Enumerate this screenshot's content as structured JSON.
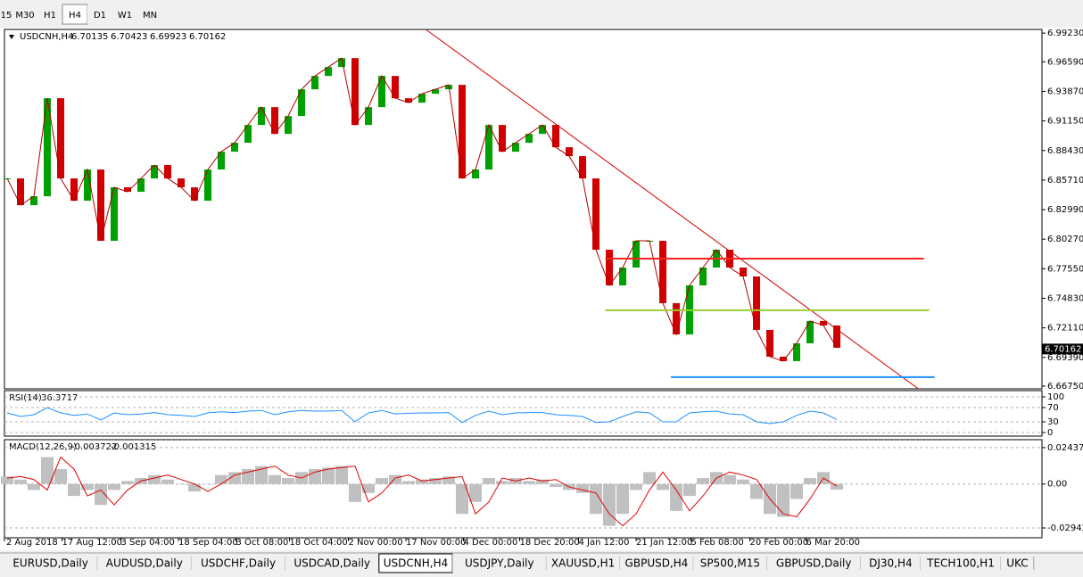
{
  "toolbar": {
    "timeframes": [
      "15",
      "M30",
      "H1",
      "H4",
      "D1",
      "W1",
      "MN"
    ],
    "active": "H4"
  },
  "tabs": {
    "items": [
      "EURUSD,Daily",
      "AUDUSD,Daily",
      "USDCHF,Daily",
      "USDCAD,Daily",
      "USDCNH,H4",
      "USDJPY,Daily",
      "XAUUSD,H1",
      "GBPUSD,H4",
      "SP500,M15",
      "GBPUSD,Daily",
      "DJ30,H4",
      "TECH100,H1",
      "UKC"
    ],
    "active": "USDCNH,H4"
  },
  "chart_data": [
    {
      "type": "candlestick",
      "title": "USDCNH,H4",
      "header_values": [
        6.70135,
        6.70423,
        6.69923,
        6.70162
      ],
      "last_price": 6.70162,
      "up_color": "#00a000",
      "down_color": "#d00000",
      "line_color": "#b00000",
      "values": [
        6.8586,
        6.834,
        6.8422,
        6.9324,
        6.8586,
        6.8381,
        6.8668,
        6.8012,
        6.8504,
        6.8463,
        6.8586,
        6.8709,
        6.8586,
        6.8504,
        6.8381,
        6.8668,
        6.8832,
        6.8914,
        6.9078,
        6.9242,
        6.8996,
        6.916,
        6.9406,
        6.9529,
        6.9611,
        6.9693,
        6.9078,
        6.9242,
        6.9529,
        6.9324,
        6.9283,
        6.9365,
        6.9406,
        6.9447,
        6.8586,
        6.8668,
        6.9078,
        6.8832,
        6.8914,
        6.8996,
        6.9078,
        6.8873,
        6.8791,
        6.8586,
        6.793,
        6.7602,
        6.7766,
        6.8012,
        6.8012,
        6.7438,
        6.7151,
        6.7602,
        6.7766,
        6.793,
        6.7766,
        6.7684,
        6.7192,
        6.6946,
        6.6905,
        6.7069,
        6.7274,
        6.7233,
        6.7028
      ],
      "xlim": [
        -0.2,
        77.33
      ],
      "ylim": [
        6.665,
        6.9957
      ],
      "xticks": [
        {
          "value": -0.2,
          "label": "2 Aug 2018"
        },
        {
          "value": 4.1,
          "label": "17 Aug 12:00"
        },
        {
          "value": 8.5,
          "label": "3 Sep 04:00"
        },
        {
          "value": 12.8,
          "label": "18 Sep 04:00"
        },
        {
          "value": 17.1,
          "label": "3 Oct 08:00"
        },
        {
          "value": 21.1,
          "label": "18 Oct 04:00"
        },
        {
          "value": 25.5,
          "label": "2 Nov 00:00"
        },
        {
          "value": 29.8,
          "label": "17 Nov 00:00"
        },
        {
          "value": 34.1,
          "label": "4 Dec 00:00"
        },
        {
          "value": 38.3,
          "label": "18 Dec 20:00"
        },
        {
          "value": 42.7,
          "label": "4 Jan 12:00"
        },
        {
          "value": 47,
          "label": "21 Jan 12:00"
        },
        {
          "value": 51.1,
          "label": "5 Feb 08:00"
        },
        {
          "value": 55.5,
          "label": "20 Feb 00:00"
        },
        {
          "value": 59.7,
          "label": "6 Mar 20:00"
        }
      ],
      "yticks": [
        {
          "value": 6.9923,
          "label": "6.99230"
        },
        {
          "value": 6.9659,
          "label": "6.96590"
        },
        {
          "value": 6.9387,
          "label": "6.93870"
        },
        {
          "value": 6.9115,
          "label": "6.91150"
        },
        {
          "value": 6.8843,
          "label": "6.88430"
        },
        {
          "value": 6.8571,
          "label": "6.85710"
        },
        {
          "value": 6.8299,
          "label": "6.82990"
        },
        {
          "value": 6.8027,
          "label": "6.80270"
        },
        {
          "value": 6.7755,
          "label": "6.77550"
        },
        {
          "value": 6.7483,
          "label": "6.74830"
        },
        {
          "value": 6.7211,
          "label": "6.72110"
        },
        {
          "value": 6.6939,
          "label": "6.69390"
        },
        {
          "value": 6.6675,
          "label": "6.66750"
        }
      ],
      "lines": [
        {
          "x": [
            31.3,
            68.1
          ],
          "y": [
            6.9956,
            6.665
          ],
          "color": "#d00000"
        },
        {
          "x": [
            44.7,
            68.5
          ],
          "y": [
            6.7848,
            6.7848
          ],
          "color": "#ff2020"
        },
        {
          "x": [
            44.7,
            68.9
          ],
          "y": [
            6.7373,
            6.7373
          ],
          "color": "#9acd32"
        },
        {
          "x": [
            49.6,
            69.3
          ],
          "y": [
            6.6758,
            6.6758
          ],
          "color": "#1e90ff"
        }
      ]
    },
    {
      "type": "line",
      "title": "RSI(14)",
      "header_values": [
        36.3717
      ],
      "color": "#1e90ff",
      "values": [
        55,
        45,
        50,
        70,
        55,
        48,
        52,
        35,
        55,
        50,
        52,
        56,
        50,
        48,
        45,
        55,
        58,
        56,
        60,
        62,
        50,
        58,
        62,
        60,
        60,
        62,
        30,
        55,
        62,
        52,
        54,
        55,
        55,
        56,
        28,
        48,
        60,
        50,
        55,
        56,
        56,
        50,
        48,
        45,
        28,
        30,
        45,
        58,
        55,
        30,
        30,
        55,
        58,
        60,
        52,
        50,
        30,
        25,
        30,
        48,
        60,
        55,
        36.3717
      ],
      "xlim": [
        -0.2,
        77.33
      ],
      "ylim": [
        -10,
        117.5
      ],
      "yticks": [
        100,
        70,
        30,
        0
      ]
    },
    {
      "type": "macd",
      "title": "MACD(12,26,9)",
      "header_values": [
        -0.003722,
        -0.001315
      ],
      "series": [
        {
          "color": "#c0c0c0",
          "values": [
            0.005,
            0.003,
            -0.004,
            0.018,
            0.01,
            -0.008,
            -0.004,
            -0.014,
            -0.004,
            0.002,
            0.004,
            0.006,
            0.003,
            0.0,
            -0.005,
            0.0,
            0.006,
            0.008,
            0.01,
            0.012,
            0.006,
            0.004,
            0.008,
            0.01,
            0.011,
            0.012,
            -0.012,
            -0.006,
            0.004,
            0.006,
            0.002,
            0.003,
            0.004,
            0.005,
            -0.02,
            -0.012,
            0.004,
            0.002,
            0.004,
            0.002,
            0.003,
            -0.002,
            -0.004,
            -0.006,
            -0.02,
            -0.028,
            -0.02,
            -0.004,
            0.008,
            -0.004,
            -0.018,
            -0.008,
            0.004,
            0.008,
            0.006,
            0.003,
            -0.01,
            -0.02,
            -0.022,
            -0.01,
            0.004,
            0.008,
            -0.003722
          ]
        },
        {
          "color": "#e00000",
          "values": [
            0.004,
            0.005,
            0.003,
            -0.004,
            0.018,
            0.01,
            -0.008,
            -0.004,
            -0.014,
            -0.004,
            0.002,
            0.004,
            0.006,
            0.003,
            0.0,
            -0.005,
            0.0,
            0.006,
            0.008,
            0.01,
            0.012,
            0.006,
            0.004,
            0.008,
            0.01,
            0.011,
            0.012,
            -0.012,
            -0.006,
            0.004,
            0.006,
            0.002,
            0.003,
            0.004,
            0.005,
            -0.02,
            -0.012,
            0.004,
            0.002,
            0.004,
            0.002,
            0.003,
            -0.002,
            -0.004,
            -0.006,
            -0.02,
            -0.028,
            -0.02,
            -0.004,
            0.008,
            -0.004,
            -0.018,
            -0.008,
            0.004,
            0.008,
            0.006,
            0.003,
            -0.01,
            -0.02,
            -0.022,
            -0.01,
            0.004,
            -0.001315
          ]
        }
      ],
      "xlim": [
        -0.2,
        77.33
      ],
      "ylim": [
        -0.036,
        0.0297
      ],
      "yticks": [
        0.024372,
        {
          "value": 0,
          "label": "0.00"
        },
        -0.029423
      ]
    }
  ]
}
